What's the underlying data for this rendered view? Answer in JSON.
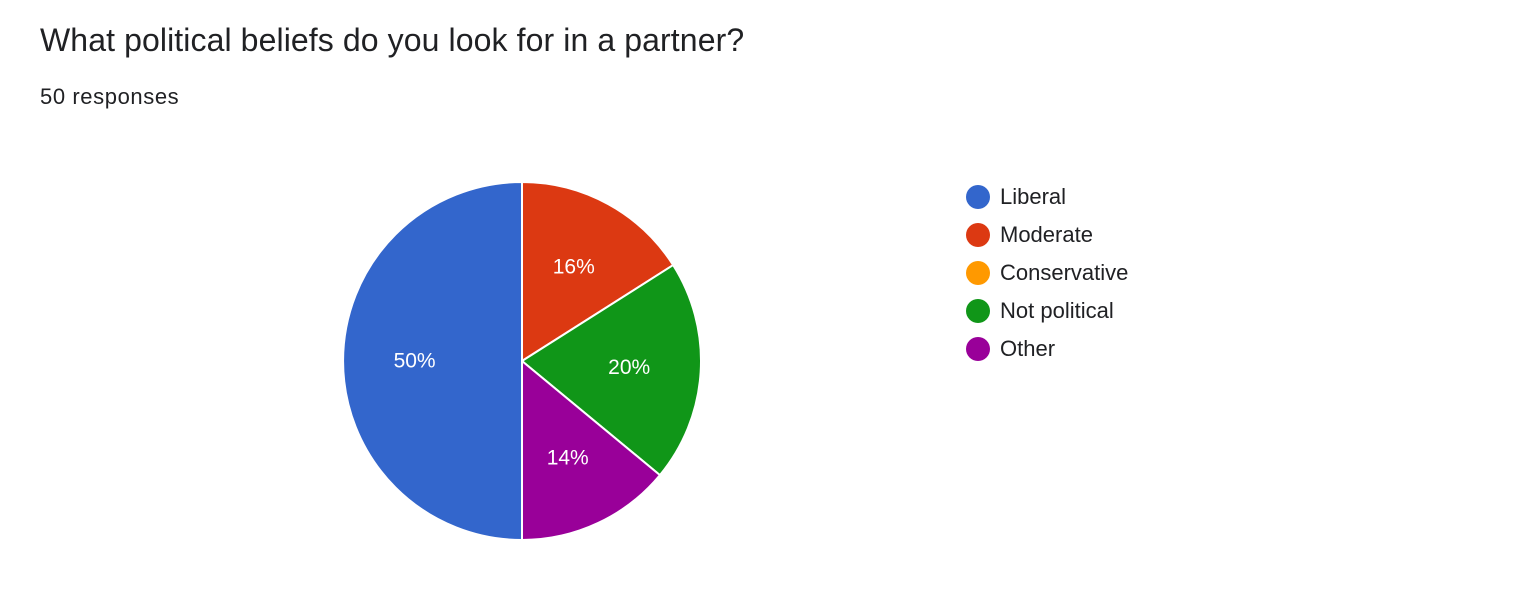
{
  "header": {
    "title": "What political beliefs do you look for in a partner?",
    "responses": "50 responses"
  },
  "chart_data": {
    "type": "pie",
    "title": "What political beliefs do you look for in a partner?",
    "legend_position": "right",
    "total_responses": 50,
    "slices": [
      {
        "label": "Liberal",
        "value": 50,
        "display": "50%",
        "color": "#3366cc"
      },
      {
        "label": "Moderate",
        "value": 16,
        "display": "16%",
        "color": "#dc3912"
      },
      {
        "label": "Conservative",
        "value": 0,
        "display": "",
        "color": "#ff9900"
      },
      {
        "label": "Not political",
        "value": 20,
        "display": "20%",
        "color": "#109618"
      },
      {
        "label": "Other",
        "value": 14,
        "display": "14%",
        "color": "#990099"
      }
    ]
  }
}
